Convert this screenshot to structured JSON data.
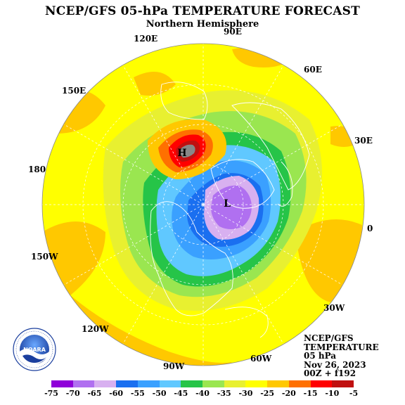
{
  "title": "NCEP/GFS 05-hPa TEMPERATURE FORECAST",
  "subtitle": "Northern Hemisphere",
  "longitude_labels": [
    "90E",
    "120E",
    "60E",
    "150E",
    "30E",
    "180",
    "0",
    "150W",
    "30W",
    "120W",
    "90W",
    "60W"
  ],
  "pressure_centers": {
    "high": "H",
    "low": "L"
  },
  "info": {
    "model": "NCEP/GFS",
    "field": "TEMPERATURE",
    "level": "05 hPa",
    "date": "Nov 26, 2023",
    "run": "00Z + f192"
  },
  "logo": {
    "name": "NOARA",
    "ring_text": "NATIONAL OCEANIC AND ATMOSPHERIC ADMINISTRATION"
  },
  "legend": {
    "labels": [
      "-75",
      "-70",
      "-65",
      "-60",
      "-55",
      "-50",
      "-45",
      "-40",
      "-35",
      "-30",
      "-25",
      "-20",
      "-15",
      "-10",
      "-5"
    ],
    "colors": [
      "#8f00d9",
      "#b070f0",
      "#d8b0f0",
      "#1a6ff0",
      "#3aa0ff",
      "#60c8ff",
      "#26c448",
      "#9ae650",
      "#e8f030",
      "#ffff00",
      "#ffc800",
      "#ff7000",
      "#ff0000",
      "#c01010",
      "#888888"
    ]
  }
}
